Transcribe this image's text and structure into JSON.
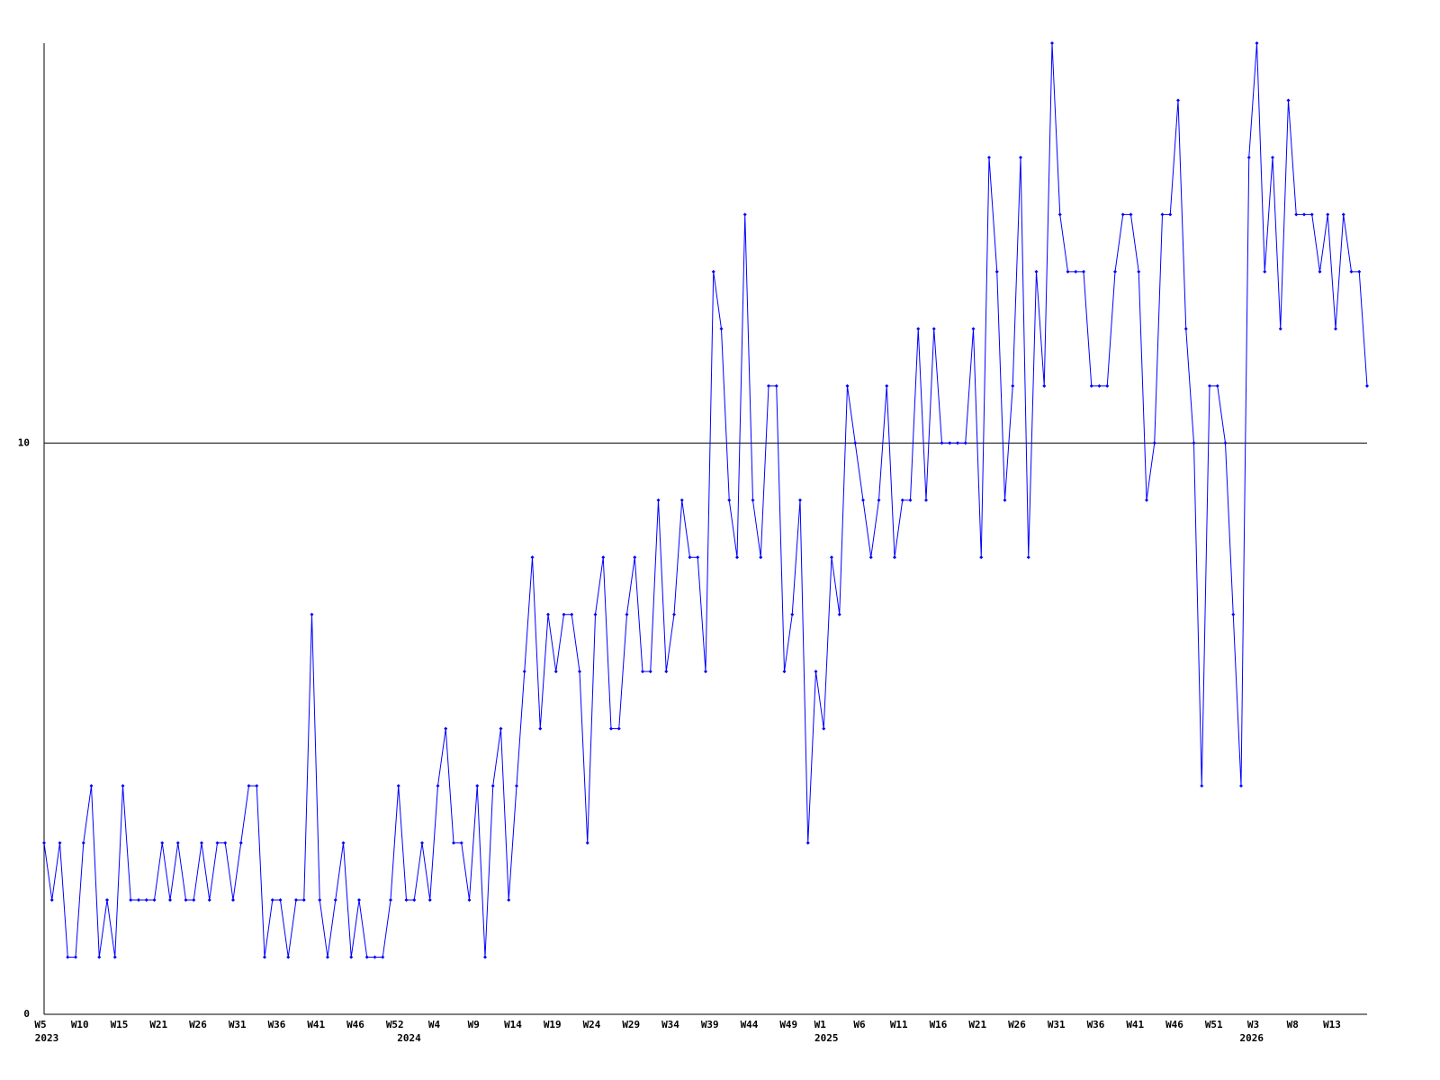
{
  "chart_data": {
    "type": "line",
    "categories": [
      "W5",
      null,
      null,
      null,
      null,
      "W10",
      null,
      null,
      null,
      null,
      "W15",
      null,
      null,
      null,
      null,
      "W21",
      null,
      null,
      null,
      null,
      "W26",
      null,
      null,
      null,
      null,
      "W31",
      null,
      null,
      null,
      null,
      "W36",
      null,
      null,
      null,
      null,
      "W41",
      null,
      null,
      null,
      null,
      "W46",
      null,
      null,
      null,
      null,
      "W52",
      null,
      null,
      null,
      null,
      "W4",
      null,
      null,
      null,
      null,
      "W9",
      null,
      null,
      null,
      null,
      "W14",
      null,
      null,
      null,
      null,
      "W19",
      null,
      null,
      null,
      null,
      "W24",
      null,
      null,
      null,
      null,
      "W29",
      null,
      null,
      null,
      null,
      "W34",
      null,
      null,
      null,
      null,
      "W39",
      null,
      null,
      null,
      null,
      "W44",
      null,
      null,
      null,
      null,
      "W49",
      null,
      null,
      null,
      "W1",
      null,
      null,
      null,
      null,
      "W6",
      null,
      null,
      null,
      null,
      "W11",
      null,
      null,
      null,
      null,
      "W16",
      null,
      null,
      null,
      null,
      "W21",
      null,
      null,
      null,
      null,
      "W26",
      null,
      null,
      null,
      null,
      "W31",
      null,
      null,
      null,
      null,
      "W36",
      null,
      null,
      null,
      null,
      "W41",
      null,
      null,
      null,
      null,
      "W46",
      null,
      null,
      null,
      null,
      "W51",
      null,
      null,
      null,
      null,
      "W3",
      null,
      null,
      null,
      null,
      "W8",
      null,
      null,
      null,
      null,
      "W13",
      null,
      null,
      null,
      null
    ],
    "year_labels": [
      "2023",
      null,
      null,
      null,
      null,
      null,
      null,
      null,
      null,
      null,
      null,
      null,
      null,
      null,
      null,
      null,
      null,
      null,
      null,
      null,
      null,
      null,
      null,
      null,
      null,
      null,
      null,
      null,
      null,
      null,
      null,
      null,
      null,
      null,
      null,
      null,
      null,
      null,
      null,
      null,
      null,
      null,
      null,
      null,
      null,
      null,
      "2024",
      null,
      null,
      null,
      null,
      null,
      null,
      null,
      null,
      null,
      null,
      null,
      null,
      null,
      null,
      null,
      null,
      null,
      null,
      null,
      null,
      null,
      null,
      null,
      null,
      null,
      null,
      null,
      null,
      null,
      null,
      null,
      null,
      null,
      null,
      null,
      null,
      null,
      null,
      null,
      null,
      null,
      null,
      null,
      null,
      null,
      null,
      null,
      null,
      null,
      null,
      null,
      null,
      "2025",
      null,
      null,
      null,
      null,
      null,
      null,
      null,
      null,
      null,
      null,
      null,
      null,
      null,
      null,
      null,
      null,
      null,
      null,
      null,
      null,
      null,
      null,
      null,
      null,
      null,
      null,
      null,
      null,
      null,
      null,
      null,
      null,
      null,
      null,
      null,
      null,
      null,
      null,
      null,
      null,
      null,
      null,
      null,
      null,
      null,
      null,
      null,
      null,
      null,
      null,
      null,
      null,
      null,
      "2026",
      null,
      null,
      null,
      null,
      null,
      null,
      null,
      null,
      null,
      null,
      null,
      null,
      null,
      null
    ],
    "series": [
      {
        "color": "#0000ff",
        "values": [
          3,
          2,
          3,
          1,
          1,
          3,
          4,
          1,
          2,
          1,
          4,
          2,
          2,
          2,
          2,
          3,
          2,
          3,
          2,
          2,
          3,
          2,
          3,
          3,
          2,
          3,
          4,
          4,
          1,
          2,
          2,
          1,
          2,
          2,
          7,
          2,
          1,
          2,
          3,
          1,
          2,
          1,
          1,
          1,
          2,
          4,
          2,
          2,
          3,
          2,
          4,
          5,
          3,
          3,
          2,
          4,
          1,
          4,
          5,
          2,
          4,
          6,
          8,
          5,
          7,
          6,
          7,
          7,
          6,
          3,
          7,
          8,
          5,
          5,
          7,
          8,
          6,
          6,
          9,
          6,
          7,
          9,
          8,
          8,
          6,
          13,
          12,
          9,
          8,
          14,
          9,
          8,
          11,
          11,
          6,
          7,
          9,
          3,
          6,
          5,
          8,
          7,
          11,
          10,
          9,
          8,
          9,
          11,
          8,
          9,
          9,
          12,
          9,
          12,
          10,
          10,
          10,
          10,
          12,
          8,
          15,
          13,
          9,
          11,
          15,
          8,
          13,
          11,
          17,
          14,
          13,
          13,
          13,
          11,
          11,
          11,
          13,
          14,
          14,
          13,
          9,
          10,
          14,
          14,
          16,
          12,
          10,
          4,
          11,
          11,
          10,
          7,
          4,
          15,
          17,
          13,
          15,
          12,
          16,
          14,
          14,
          14,
          13,
          14,
          12,
          14,
          13,
          13,
          11
        ]
      }
    ],
    "ylim": [
      0,
      17
    ],
    "yticks": [
      0,
      10
    ],
    "grid": true
  }
}
